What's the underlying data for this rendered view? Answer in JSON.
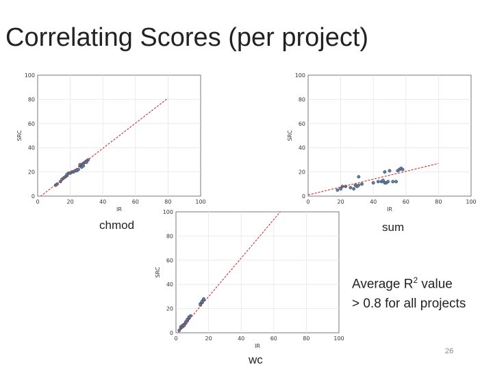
{
  "slide": {
    "title": "Correlating Scores (per project)",
    "note_line1": "Average R",
    "note_sup": "2",
    "note_line1_tail": " value",
    "note_line2": "> 0.8 for all projects",
    "page_number": "26"
  },
  "colors": {
    "marker": "#5b7fa6",
    "marker_edge": "#333333",
    "fit_line": "#d62728",
    "grid": "#e6e6e6",
    "axis": "#555555"
  },
  "chart_data": [
    {
      "type": "scatter",
      "caption": "chmod",
      "xlabel": "IR",
      "ylabel": "SRC",
      "xlim": [
        0,
        100
      ],
      "ylim": [
        0,
        100
      ],
      "xticks": [
        "0",
        "20",
        "40",
        "60",
        "80",
        "100"
      ],
      "yticks": [
        "0",
        "20",
        "40",
        "60",
        "80",
        "100"
      ],
      "grid": true,
      "fit": {
        "x": [
          0,
          80
        ],
        "y": [
          -2,
          81
        ]
      },
      "points": [
        [
          11,
          9
        ],
        [
          12,
          10
        ],
        [
          14,
          12
        ],
        [
          15,
          14
        ],
        [
          16,
          15
        ],
        [
          17,
          16
        ],
        [
          18,
          17
        ],
        [
          18,
          18
        ],
        [
          19,
          19
        ],
        [
          20,
          19
        ],
        [
          21,
          20
        ],
        [
          22,
          20
        ],
        [
          23,
          21
        ],
        [
          24,
          21
        ],
        [
          25,
          22
        ],
        [
          26,
          25
        ],
        [
          26,
          26
        ],
        [
          27,
          24
        ],
        [
          27,
          26
        ],
        [
          28,
          27
        ],
        [
          29,
          28
        ],
        [
          30,
          29
        ],
        [
          31,
          30
        ],
        [
          30,
          28
        ],
        [
          28,
          25
        ]
      ]
    },
    {
      "type": "scatter",
      "caption": "sum",
      "xlabel": "IR",
      "ylabel": "SRC",
      "xlim": [
        0,
        100
      ],
      "ylim": [
        0,
        100
      ],
      "xticks": [
        "0",
        "20",
        "40",
        "60",
        "80",
        "100"
      ],
      "yticks": [
        "0",
        "20",
        "40",
        "60",
        "80",
        "100"
      ],
      "grid": true,
      "fit": {
        "x": [
          0,
          80
        ],
        "y": [
          1,
          27
        ]
      },
      "points": [
        [
          18,
          5
        ],
        [
          20,
          6
        ],
        [
          21,
          8
        ],
        [
          23,
          8
        ],
        [
          26,
          7
        ],
        [
          28,
          6
        ],
        [
          29,
          9
        ],
        [
          30,
          8
        ],
        [
          31,
          9
        ],
        [
          31,
          16
        ],
        [
          33,
          10
        ],
        [
          40,
          11
        ],
        [
          43,
          12
        ],
        [
          45,
          12
        ],
        [
          46,
          13
        ],
        [
          47,
          11
        ],
        [
          47,
          20
        ],
        [
          48,
          11
        ],
        [
          49,
          12
        ],
        [
          50,
          21
        ],
        [
          52,
          12
        ],
        [
          54,
          12
        ],
        [
          55,
          21
        ],
        [
          56,
          22
        ],
        [
          57,
          23
        ],
        [
          58,
          22
        ]
      ]
    },
    {
      "type": "scatter",
      "caption": "wc",
      "xlabel": "IR",
      "ylabel": "SRC",
      "xlim": [
        0,
        100
      ],
      "ylim": [
        0,
        100
      ],
      "xticks": [
        "0",
        "20",
        "40",
        "60",
        "80",
        "100"
      ],
      "yticks": [
        "0",
        "20",
        "40",
        "60",
        "80",
        "100"
      ],
      "grid": true,
      "fit": {
        "x": [
          0,
          64
        ],
        "y": [
          -2,
          100
        ]
      },
      "points": [
        [
          2,
          2
        ],
        [
          3,
          4
        ],
        [
          3,
          5
        ],
        [
          4,
          5
        ],
        [
          4,
          6
        ],
        [
          5,
          7
        ],
        [
          5,
          6
        ],
        [
          6,
          8
        ],
        [
          6,
          9
        ],
        [
          7,
          10
        ],
        [
          7,
          11
        ],
        [
          8,
          12
        ],
        [
          8,
          13
        ],
        [
          9,
          14
        ],
        [
          15,
          24
        ],
        [
          16,
          25
        ],
        [
          16,
          26
        ],
        [
          17,
          27
        ],
        [
          17,
          28
        ],
        [
          15,
          23
        ]
      ]
    }
  ]
}
